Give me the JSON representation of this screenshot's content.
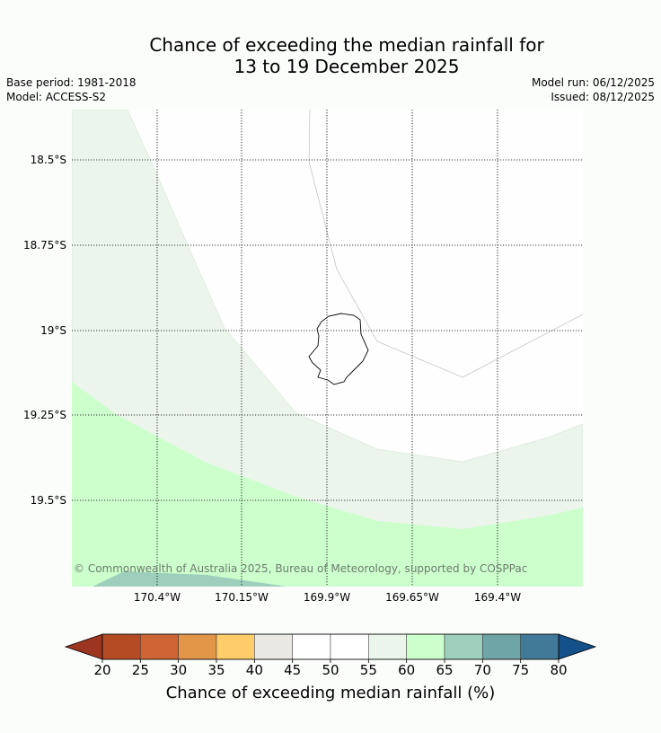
{
  "title_line1": "Chance of exceeding the median rainfall for",
  "title_line2": "13 to 19 December 2025",
  "base_period": "Base period: 1981-2018",
  "model": "Model: ACCESS-S2",
  "model_run": "Model run: 06/12/2025",
  "issued": "Issued: 08/12/2025",
  "copyright": "© Commonwealth of Australia 2025, Bureau of Meteorology, supported by COSPPac",
  "lat_labels": [
    "18.5°S",
    "18.75°S",
    "19°S",
    "19.25°S",
    "19.5°S"
  ],
  "lon_labels": [
    "170.4°W",
    "170.15°W",
    "169.9°W",
    "169.65°W",
    "169.4°W"
  ],
  "colorbar": {
    "label": "Chance of exceeding median rainfall (%)",
    "ticks": [
      "20",
      "25",
      "30",
      "35",
      "40",
      "45",
      "50",
      "55",
      "60",
      "65",
      "70",
      "75",
      "80"
    ],
    "colors": [
      "#b44b25",
      "#cf6533",
      "#e39548",
      "#fecc68",
      "#e9e8e3",
      "#ffffff",
      "#ffffff",
      "#ebf5eb",
      "#ccffcc",
      "#9dcfbc",
      "#6fa5a7",
      "#417a98"
    ],
    "under_color": "#9c3620",
    "over_color": "#14508a"
  },
  "colors": {
    "band_55_60": "#ebf5eb",
    "band_60_65": "#ccffcc",
    "band_65_70": "#9dcfbc",
    "island_outline": "#000000"
  }
}
